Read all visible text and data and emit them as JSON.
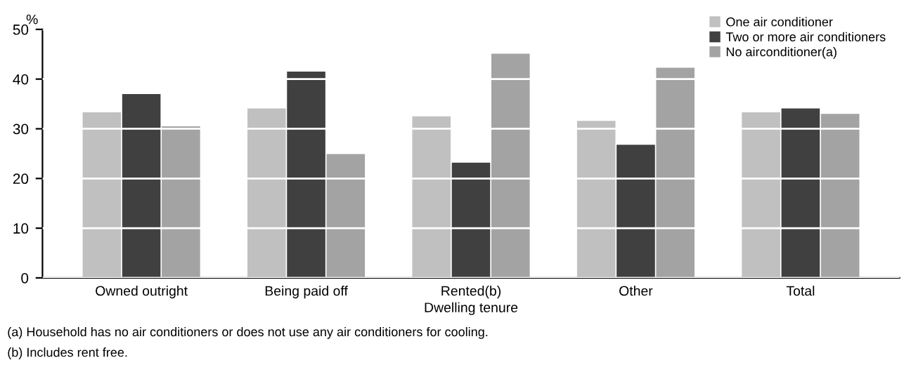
{
  "chart_data": {
    "type": "bar",
    "xlabel": "Dwelling tenure",
    "ylabel": "%",
    "categories": [
      "Owned outright",
      "Being paid off",
      "Rented(b)",
      "Other",
      "Total"
    ],
    "series": [
      {
        "name": "One air conditioner",
        "color": "#c0c0c0",
        "values": [
          33.3,
          34.1,
          32.5,
          31.6,
          33.3
        ]
      },
      {
        "name": "Two or more air conditioners",
        "color": "#404040",
        "values": [
          37.0,
          41.5,
          23.2,
          26.8,
          34.1
        ]
      },
      {
        "name": "No airconditioner(a)",
        "color": "#a3a3a3",
        "values": [
          30.5,
          24.9,
          45.1,
          42.3,
          33.0
        ]
      }
    ],
    "ylim": [
      0,
      50
    ],
    "yticks": [
      0,
      10,
      20,
      30,
      40,
      50
    ],
    "grid": "y",
    "legend": "top right",
    "annotations": [
      "(a) Household has no air conditioners or does not use any air conditioners for cooling.",
      "(b) Includes rent free."
    ]
  }
}
